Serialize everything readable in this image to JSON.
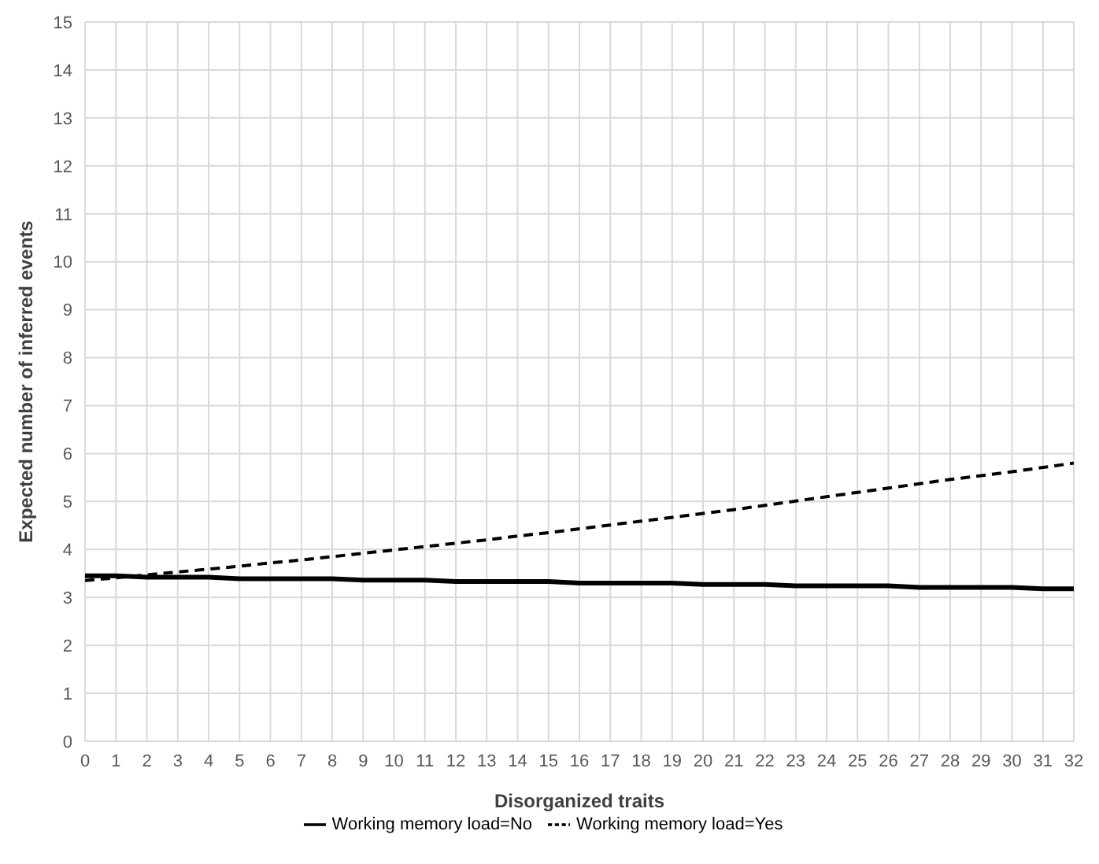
{
  "chart_data": {
    "type": "line",
    "xlabel": "Disorganized traits",
    "ylabel": "Expected number of inferred events",
    "x": [
      0,
      1,
      2,
      3,
      4,
      5,
      6,
      7,
      8,
      9,
      10,
      11,
      12,
      13,
      14,
      15,
      16,
      17,
      18,
      19,
      20,
      21,
      22,
      23,
      24,
      25,
      26,
      27,
      28,
      29,
      30,
      31,
      32
    ],
    "xlim": [
      0,
      32
    ],
    "xticks": [
      0,
      1,
      2,
      3,
      4,
      5,
      6,
      7,
      8,
      9,
      10,
      11,
      12,
      13,
      14,
      15,
      16,
      17,
      18,
      19,
      20,
      21,
      22,
      23,
      24,
      25,
      26,
      27,
      28,
      29,
      30,
      31,
      32
    ],
    "ylim": [
      0,
      15
    ],
    "yticks": [
      0,
      1,
      2,
      3,
      4,
      5,
      6,
      7,
      8,
      9,
      10,
      11,
      12,
      13,
      14,
      15
    ],
    "grid": true,
    "legend": "bottom",
    "marker": "none",
    "series": [
      {
        "name": "Working memory load=No",
        "color": "#000000",
        "line_style": "solid",
        "values": [
          3.45,
          3.45,
          3.42,
          3.42,
          3.42,
          3.39,
          3.39,
          3.39,
          3.39,
          3.36,
          3.36,
          3.36,
          3.33,
          3.33,
          3.33,
          3.33,
          3.3,
          3.3,
          3.3,
          3.3,
          3.27,
          3.27,
          3.27,
          3.24,
          3.24,
          3.24,
          3.24,
          3.21,
          3.21,
          3.21,
          3.21,
          3.18,
          3.18
        ]
      },
      {
        "name": "Working memory load=Yes",
        "color": "#000000",
        "line_style": "dashed",
        "values": [
          3.35,
          3.41,
          3.47,
          3.53,
          3.59,
          3.65,
          3.72,
          3.78,
          3.85,
          3.92,
          3.99,
          4.06,
          4.13,
          4.2,
          4.28,
          4.35,
          4.43,
          4.51,
          4.59,
          4.67,
          4.75,
          4.83,
          4.92,
          5.01,
          5.1,
          5.19,
          5.28,
          5.37,
          5.46,
          5.54,
          5.62,
          5.71,
          5.8
        ]
      }
    ]
  }
}
